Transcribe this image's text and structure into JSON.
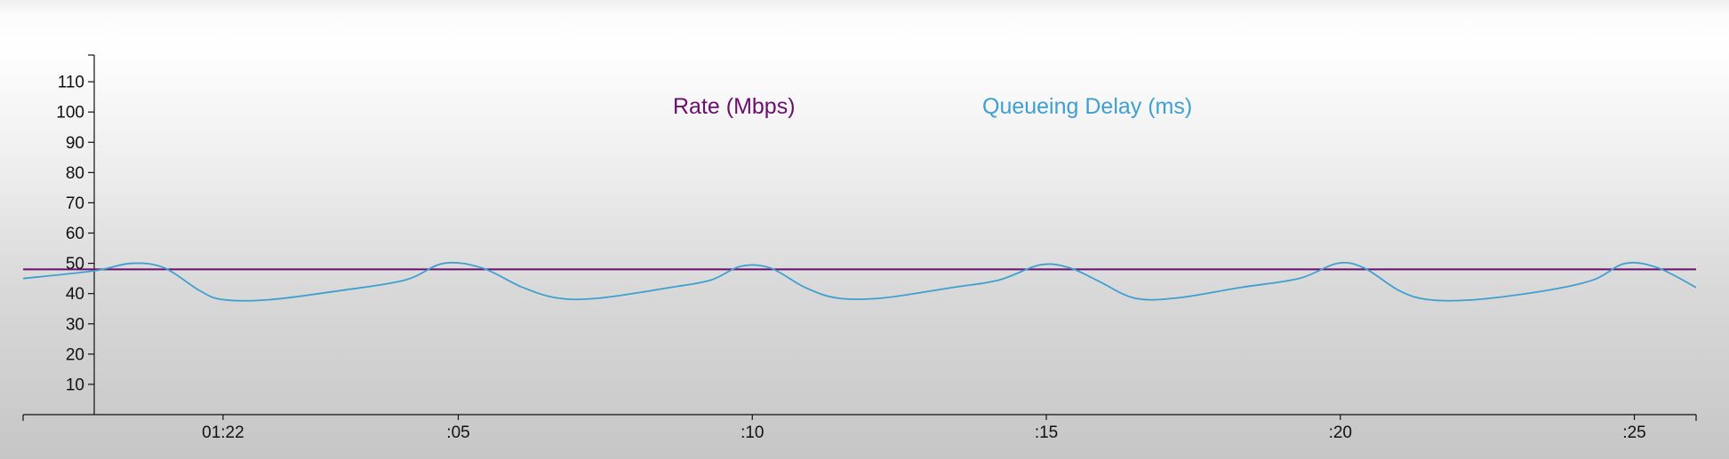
{
  "chart_data": {
    "type": "line",
    "title": "",
    "xlabel": "",
    "ylabel": "",
    "y_ticks": [
      10,
      20,
      30,
      40,
      50,
      60,
      70,
      80,
      90,
      100,
      110
    ],
    "ylim": [
      0,
      120
    ],
    "x_range_seconds": [
      -2.4,
      26.05
    ],
    "x_ticks": [
      {
        "t": 1,
        "label": "01:22"
      },
      {
        "t": 5,
        "label": ":05"
      },
      {
        "t": 10,
        "label": ":10"
      },
      {
        "t": 15,
        "label": ":15"
      },
      {
        "t": 20,
        "label": ":20"
      },
      {
        "t": 25,
        "label": ":25"
      }
    ],
    "grid": false,
    "legend_position": "top-center",
    "series": [
      {
        "name": "Rate (Mbps)",
        "color": "#6b0f6e",
        "points": [
          [
            -2.4,
            48
          ],
          [
            26.05,
            48
          ]
        ]
      },
      {
        "name": "Queueing Delay (ms)",
        "color": "#3fa0d0",
        "points": [
          [
            -2.4,
            45
          ],
          [
            -1.2,
            47.5
          ],
          [
            -0.55,
            50
          ],
          [
            0.0,
            48.5
          ],
          [
            0.6,
            41
          ],
          [
            1.0,
            38
          ],
          [
            1.8,
            38
          ],
          [
            3.0,
            41
          ],
          [
            4.1,
            44.5
          ],
          [
            4.75,
            50
          ],
          [
            5.4,
            48.5
          ],
          [
            6.1,
            42
          ],
          [
            6.7,
            38.5
          ],
          [
            7.4,
            38.5
          ],
          [
            8.6,
            42
          ],
          [
            9.3,
            44.5
          ],
          [
            9.8,
            49
          ],
          [
            10.3,
            48.5
          ],
          [
            10.9,
            42
          ],
          [
            11.45,
            38.5
          ],
          [
            12.2,
            38.5
          ],
          [
            13.4,
            42
          ],
          [
            14.2,
            44.5
          ],
          [
            14.9,
            49.5
          ],
          [
            15.4,
            48.5
          ],
          [
            15.9,
            44
          ],
          [
            16.5,
            38.5
          ],
          [
            17.2,
            38.5
          ],
          [
            18.3,
            42
          ],
          [
            19.3,
            45
          ],
          [
            19.95,
            50
          ],
          [
            20.4,
            48.5
          ],
          [
            21.0,
            41
          ],
          [
            21.5,
            38
          ],
          [
            22.3,
            38
          ],
          [
            23.5,
            41
          ],
          [
            24.3,
            44.5
          ],
          [
            24.85,
            50
          ],
          [
            25.4,
            48.5
          ],
          [
            26.05,
            42
          ]
        ]
      }
    ]
  }
}
